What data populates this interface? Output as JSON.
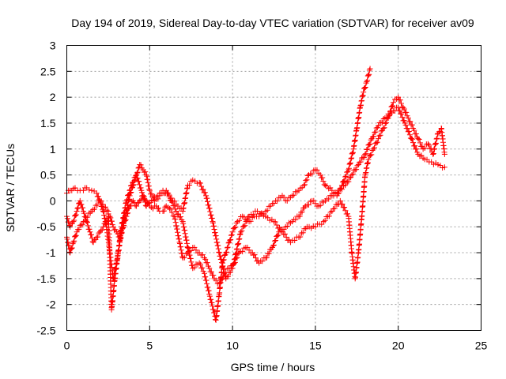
{
  "chart_data": {
    "type": "scatter",
    "title": "Day 194 of 2019, Sidereal Day-to-day VTEC variation (SDTVAR) for receiver av09",
    "xlabel": "GPS time / hours",
    "ylabel": "SDTVAR / TECUs",
    "xlim": [
      0,
      25
    ],
    "ylim": [
      -2.5,
      3
    ],
    "xticks": [
      0,
      5,
      10,
      15,
      20,
      25
    ],
    "yticks": [
      -2.5,
      -2,
      -1.5,
      -1,
      -0.5,
      0,
      0.5,
      1,
      1.5,
      2,
      2.5,
      3
    ],
    "xtick_labels": [
      "0",
      "5",
      "10",
      "15",
      "20",
      "25"
    ],
    "ytick_labels": [
      "-2.5",
      "-2",
      "-1.5",
      "-1",
      "-0.5",
      "0",
      "0.5",
      "1",
      "1.5",
      "2",
      "2.5",
      "3"
    ],
    "grid": true,
    "marker": "+",
    "color": "#ff0000",
    "series": [
      {
        "x": [
          0.0,
          0.1,
          0.2,
          0.3,
          0.5,
          0.8,
          1.0,
          1.2,
          1.5,
          1.8,
          2.0,
          2.2,
          2.4,
          2.6,
          2.8,
          3.0,
          3.2,
          3.5,
          3.8,
          4.0,
          4.2,
          4.4,
          4.6,
          4.8,
          5.0,
          5.3,
          5.6,
          6.0,
          6.3,
          6.6,
          7.0,
          7.3,
          7.6,
          8.0,
          8.3,
          8.6,
          9.0,
          9.2,
          9.4,
          9.6,
          9.8,
          10.0,
          10.3,
          10.6,
          11.0,
          11.3,
          11.6,
          12.0,
          12.3,
          12.6,
          13.0,
          13.3,
          13.6,
          14.0,
          14.3,
          14.6,
          15.0,
          15.3,
          15.6,
          16.0,
          16.3,
          16.6,
          17.0,
          17.3,
          17.5,
          17.7,
          17.9,
          18.1,
          18.3
        ],
        "y": [
          0.15,
          0.2,
          0.2,
          0.2,
          0.25,
          0.2,
          0.2,
          0.25,
          0.2,
          0.15,
          0.0,
          -0.2,
          -0.5,
          -1.0,
          -1.5,
          -1.2,
          -0.8,
          -0.3,
          0.1,
          0.3,
          0.5,
          0.7,
          0.6,
          0.5,
          0.2,
          0.0,
          0.1,
          0.2,
          0.0,
          -0.2,
          -0.4,
          -0.9,
          -1.3,
          -1.2,
          -1.4,
          -1.8,
          -2.3,
          -1.8,
          -1.2,
          -1.0,
          -0.8,
          -0.6,
          -0.4,
          -0.3,
          -0.4,
          -0.3,
          -0.3,
          -0.2,
          -0.1,
          0.0,
          0.1,
          0.0,
          0.1,
          0.2,
          0.3,
          0.5,
          0.6,
          0.5,
          0.3,
          0.2,
          0.1,
          0.3,
          0.6,
          1.0,
          1.4,
          1.8,
          2.1,
          2.3,
          2.55
        ]
      },
      {
        "x": [
          0.0,
          0.2,
          0.4,
          0.6,
          0.8,
          1.0,
          1.2,
          1.4,
          1.6,
          1.8,
          2.0,
          2.2,
          2.4,
          2.6,
          2.8,
          3.0,
          3.2,
          3.4,
          3.6,
          3.8,
          4.0,
          4.2,
          4.4,
          4.6,
          4.8,
          5.0,
          5.2,
          5.4,
          5.6,
          5.8,
          6.0,
          6.2,
          6.5,
          6.8,
          7.0,
          7.3,
          7.6,
          8.0,
          8.3,
          8.6,
          8.9,
          9.2,
          9.5,
          9.8,
          10.1,
          10.4,
          10.8,
          11.2,
          11.6,
          12.0,
          12.4,
          12.8,
          13.2,
          13.6,
          14.0,
          14.4,
          14.8,
          15.2,
          15.6,
          16.0,
          16.4,
          16.8,
          17.2,
          17.6,
          18.0,
          18.4,
          18.8,
          19.2,
          19.6,
          20.0,
          20.4,
          20.8,
          21.2,
          21.6,
          22.0,
          22.4,
          22.8
        ],
        "y": [
          -0.3,
          -0.5,
          -0.4,
          -0.2,
          0.0,
          -0.2,
          -0.4,
          -0.6,
          -0.8,
          -0.7,
          -0.6,
          -0.5,
          -0.4,
          -0.3,
          -0.5,
          -0.6,
          -0.7,
          -0.5,
          -0.3,
          -0.1,
          0.0,
          -0.1,
          0.0,
          0.1,
          0.0,
          -0.1,
          -0.15,
          -0.1,
          -0.2,
          -0.2,
          -0.1,
          -0.15,
          -0.3,
          -0.8,
          -1.1,
          -1.0,
          -0.9,
          -1.0,
          -1.1,
          -1.3,
          -1.5,
          -1.6,
          -1.4,
          -1.3,
          -1.2,
          -1.0,
          -0.9,
          -1.0,
          -1.2,
          -1.1,
          -0.9,
          -0.6,
          -0.5,
          -0.4,
          -0.3,
          -0.1,
          0.0,
          -0.1,
          0.0,
          0.1,
          0.2,
          0.3,
          0.5,
          0.7,
          0.9,
          1.2,
          1.45,
          1.6,
          1.7,
          1.8,
          1.5,
          1.2,
          0.9,
          0.8,
          0.75,
          0.7,
          0.65
        ]
      },
      {
        "x": [
          0.0,
          0.2,
          0.4,
          0.6,
          1.0,
          1.5,
          2.0,
          2.5,
          2.7,
          2.9,
          3.1,
          3.3,
          3.6,
          3.9,
          4.2,
          4.5,
          4.8,
          5.1,
          5.5,
          5.8,
          6.1,
          6.4,
          6.7,
          7.0,
          7.3,
          7.6,
          8.0,
          8.4,
          8.8,
          9.2,
          9.6,
          10.0,
          10.5,
          11.0,
          11.5,
          12.0,
          12.5,
          13.0,
          13.5,
          14.0,
          14.5,
          15.0,
          15.5,
          16.0,
          16.5,
          17.0,
          17.2,
          17.4,
          17.6,
          17.8,
          18.0,
          18.2,
          18.5,
          18.8,
          19.1,
          19.4,
          19.7,
          20.0,
          20.3,
          20.6,
          20.9,
          21.2,
          21.5,
          21.8,
          22.1,
          22.4,
          22.6,
          22.8
        ],
        "y": [
          -0.7,
          -1.0,
          -0.8,
          -0.6,
          -0.4,
          -0.2,
          0.0,
          -0.2,
          -2.1,
          -1.5,
          -1.0,
          -0.5,
          0.0,
          0.3,
          0.5,
          0.2,
          -0.1,
          0.0,
          0.1,
          0.2,
          0.15,
          0.0,
          -0.1,
          -0.2,
          0.3,
          0.4,
          0.35,
          0.1,
          -0.4,
          -1.0,
          -1.5,
          -1.3,
          -0.6,
          -0.3,
          -0.2,
          -0.3,
          -0.4,
          -0.6,
          -0.8,
          -0.7,
          -0.5,
          -0.5,
          -0.4,
          -0.2,
          0.0,
          -0.3,
          -1.0,
          -1.5,
          -1.0,
          -0.3,
          0.5,
          0.8,
          1.0,
          1.2,
          1.4,
          1.6,
          1.9,
          2.0,
          1.8,
          1.6,
          1.4,
          1.2,
          1.0,
          1.1,
          0.9,
          1.3,
          1.4,
          0.9
        ]
      }
    ]
  }
}
